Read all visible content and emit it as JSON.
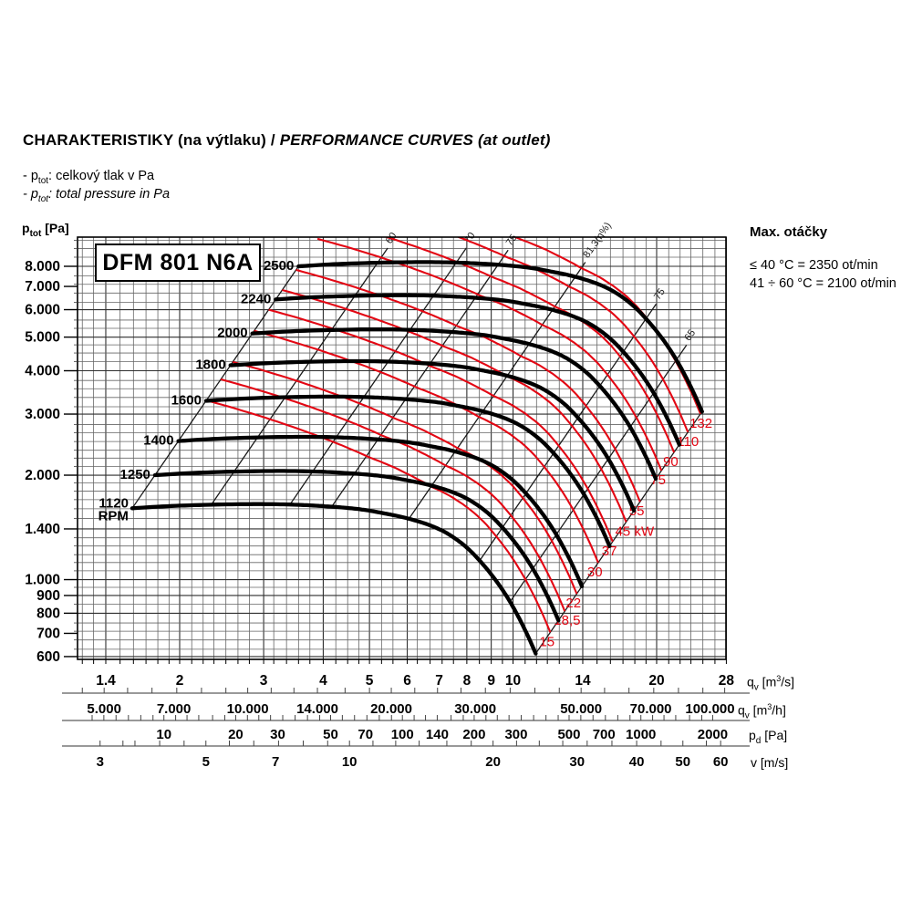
{
  "header": {
    "title_cs": "CHARAKTERISTIKY (na výtlaku) / ",
    "title_en": "PERFORMANCE CURVES (at outlet)",
    "bullet1": {
      "prefix": "- p",
      "sub": "tot",
      "text": ": celkový tlak v Pa"
    },
    "bullet2": {
      "prefix": "- p",
      "sub": "tot",
      "text": ": total pressure in Pa"
    }
  },
  "info_panel": {
    "title": "Max. otáčky",
    "line1": "≤ 40 °C = 2350 ot/min",
    "line2": "41 ÷ 60 °C = 2100 ot/min"
  },
  "chart_data": {
    "type": "line",
    "title": "DFM 801 N6A",
    "y_axis": {
      "label_text": "ptot [Pa]",
      "label_parts": [
        {
          "t": "p"
        },
        {
          "t": "tot",
          "s": "sub"
        },
        {
          "t": " [Pa]"
        }
      ],
      "scale": "log",
      "range": [
        590,
        9700
      ],
      "ticks": [
        {
          "v": 8000,
          "t": "8.000"
        },
        {
          "v": 7000,
          "t": "7.000"
        },
        {
          "v": 6000,
          "t": "6.000"
        },
        {
          "v": 5000,
          "t": "5.000"
        },
        {
          "v": 4000,
          "t": "4.000"
        },
        {
          "v": 3000,
          "t": "3.000"
        },
        {
          "v": 2000,
          "t": "2.000"
        },
        {
          "v": 1400,
          "t": "1.400"
        },
        {
          "v": 1000,
          "t": "1.000"
        },
        {
          "v": 900,
          "t": "900"
        },
        {
          "v": 800,
          "t": "800"
        },
        {
          "v": 700,
          "t": "700"
        },
        {
          "v": 600,
          "t": "600"
        }
      ]
    },
    "x_axes": [
      {
        "id": "qv_m3s",
        "unit_text": "qv [m³/s]",
        "unit_parts": [
          {
            "t": "q"
          },
          {
            "t": "v",
            "s": "sub"
          },
          {
            "t": " [m"
          },
          {
            "t": "3",
            "s": "sup"
          },
          {
            "t": "/s]"
          }
        ],
        "scale": "log",
        "range": [
          1.225,
          28
        ],
        "labels": [
          {
            "v": 1.4,
            "t": "1.4"
          },
          {
            "v": 2,
            "t": "2"
          },
          {
            "v": 3,
            "t": "3"
          },
          {
            "v": 4,
            "t": "4"
          },
          {
            "v": 5,
            "t": "5"
          },
          {
            "v": 6,
            "t": "6"
          },
          {
            "v": 7,
            "t": "7"
          },
          {
            "v": 8,
            "t": "8"
          },
          {
            "v": 9,
            "t": "9"
          },
          {
            "v": 10,
            "t": "10"
          },
          {
            "v": 14,
            "t": "14"
          },
          {
            "v": 20,
            "t": "20"
          },
          {
            "v": 28,
            "t": "28"
          }
        ]
      },
      {
        "id": "qv_m3h",
        "unit_text": "qv [m³/h]",
        "unit_parts": [
          {
            "t": "q"
          },
          {
            "t": "v",
            "s": "sub"
          },
          {
            "t": " [m"
          },
          {
            "t": "3",
            "s": "sup"
          },
          {
            "t": "/h]"
          }
        ],
        "scale": "log",
        "labels": [
          {
            "v": 5000,
            "t": "5.000"
          },
          {
            "v": 7000,
            "t": "7.000"
          },
          {
            "v": 10000,
            "t": "10.000"
          },
          {
            "v": 14000,
            "t": "14.000"
          },
          {
            "v": 20000,
            "t": "20.000"
          },
          {
            "v": 30000,
            "t": "30.000"
          },
          {
            "v": 50000,
            "t": "50.000"
          },
          {
            "v": 70000,
            "t": "70.000"
          },
          {
            "v": 100000,
            "t": "100.000"
          }
        ],
        "ticks": [
          4500,
          5000,
          5600,
          6300,
          7100,
          8000,
          9000,
          10000,
          11200,
          12500,
          14000,
          16000,
          18000,
          20000,
          22400,
          25000,
          28000,
          31500,
          35500,
          40000,
          45000,
          50000,
          56000,
          63000,
          71000,
          80000,
          90000,
          100000
        ]
      },
      {
        "id": "pd_pa",
        "unit_text": "pd [Pa]",
        "unit_parts": [
          {
            "t": "p"
          },
          {
            "t": "d",
            "s": "sub"
          },
          {
            "t": " [Pa]"
          }
        ],
        "scale": "log",
        "labels": [
          {
            "v": 10,
            "t": "10"
          },
          {
            "v": 20,
            "t": "20"
          },
          {
            "v": 30,
            "t": "30"
          },
          {
            "v": 50,
            "t": "50"
          },
          {
            "v": 70,
            "t": "70"
          },
          {
            "v": 100,
            "t": "100"
          },
          {
            "v": 140,
            "t": "140"
          },
          {
            "v": 200,
            "t": "200"
          },
          {
            "v": 300,
            "t": "300"
          },
          {
            "v": 500,
            "t": "500"
          },
          {
            "v": 700,
            "t": "700"
          },
          {
            "v": 1000,
            "t": "1000"
          },
          {
            "v": 2000,
            "t": "2000"
          }
        ],
        "ticks": [
          5,
          5.6,
          6.3,
          7.1,
          8,
          9,
          10,
          11.2,
          12.5,
          14,
          16,
          18,
          20,
          22.4,
          25,
          28,
          31.5,
          35.5,
          40,
          45,
          50,
          56,
          63,
          71,
          80,
          90,
          100,
          112,
          125,
          140,
          160,
          180,
          200,
          224,
          250,
          280,
          315,
          355,
          400,
          450,
          500,
          560,
          630,
          710,
          800,
          900,
          1000,
          1120,
          1250,
          1400,
          1600,
          1800,
          2000
        ]
      },
      {
        "id": "v_ms",
        "unit_text": "v [m/s]",
        "unit_parts": [
          {
            "t": "v"
          },
          {
            "t": " [m/s]"
          }
        ],
        "scale": "log",
        "labels": [
          {
            "v": 3,
            "t": "3"
          },
          {
            "v": 5,
            "t": "5"
          },
          {
            "v": 7,
            "t": "7"
          },
          {
            "v": 10,
            "t": "10"
          },
          {
            "v": 20,
            "t": "20"
          },
          {
            "v": 30,
            "t": "30"
          },
          {
            "v": 40,
            "t": "40"
          },
          {
            "v": 50,
            "t": "50"
          },
          {
            "v": 60,
            "t": "60"
          }
        ],
        "ticks": [
          3,
          3.35,
          3.55,
          4,
          4.5,
          5,
          5.6,
          6.3,
          7.1,
          8,
          9,
          10,
          11.2,
          12.5,
          14,
          16,
          18,
          20,
          22.4,
          25,
          28,
          31.5,
          35.5,
          40,
          45,
          50,
          56,
          60
        ]
      }
    ],
    "rpm_curves": {
      "unit": "RPM",
      "speeds": [
        2500,
        2240,
        2000,
        1800,
        1600,
        1400,
        1250,
        1120
      ],
      "labels": [
        "2500",
        "2240",
        "2000",
        "1800",
        "1600",
        "1400",
        "1250",
        "1120"
      ],
      "lowest_label_suffix": "RPM",
      "reference_speed": 2500,
      "base_curve_2500": {
        "q_m3s": [
          3.55,
          4.2,
          5.0,
          6.0,
          7.0,
          8.0,
          9.0,
          10.0,
          11.0,
          12.0,
          13.0,
          14.0,
          15.0,
          16.0,
          17.0,
          18.0,
          19.0,
          20.0,
          21.0,
          22.0,
          23.0,
          24.0,
          24.9
        ],
        "p_pa": [
          8000,
          8110,
          8180,
          8220,
          8220,
          8180,
          8110,
          8020,
          7900,
          7730,
          7560,
          7360,
          7130,
          6850,
          6500,
          6100,
          5650,
          5200,
          4750,
          4300,
          3850,
          3420,
          3050
        ]
      }
    },
    "power_curves": {
      "unit": "kW",
      "values": [
        132,
        110,
        90,
        75,
        55,
        45,
        37,
        30,
        22,
        18.5,
        15
      ],
      "labels": [
        "132",
        "110",
        "90",
        "75",
        "55",
        "45 kW",
        "37",
        "30",
        "22",
        "18,5",
        "15"
      ],
      "power_along_2500_curve": {
        "q_m3s": [
          3.55,
          5.3,
          7.7,
          9.5,
          11.5,
          13.5,
          16,
          19,
          22,
          24.9
        ],
        "kw": [
          57,
          72,
          90,
          102,
          112,
          121,
          127,
          131,
          133.5,
          135
        ]
      }
    },
    "efficiency_lines": {
      "q_at_2500": [
        3.55,
        5.2,
        7.6,
        9.3,
        13.5,
        19.0,
        22.0,
        24.9
      ],
      "labels": [
        "",
        "60",
        "70",
        "75",
        "81,3(η%)",
        "75",
        "65",
        ""
      ]
    },
    "colors": {
      "rpm_curve": "#000000",
      "power_curve": "#e30613",
      "efficiency_line": "#1a1a1a",
      "grid_minor": "#666666",
      "grid_major": "#2f2f2f",
      "scale_line": "#999999",
      "tick": "#444444"
    }
  }
}
